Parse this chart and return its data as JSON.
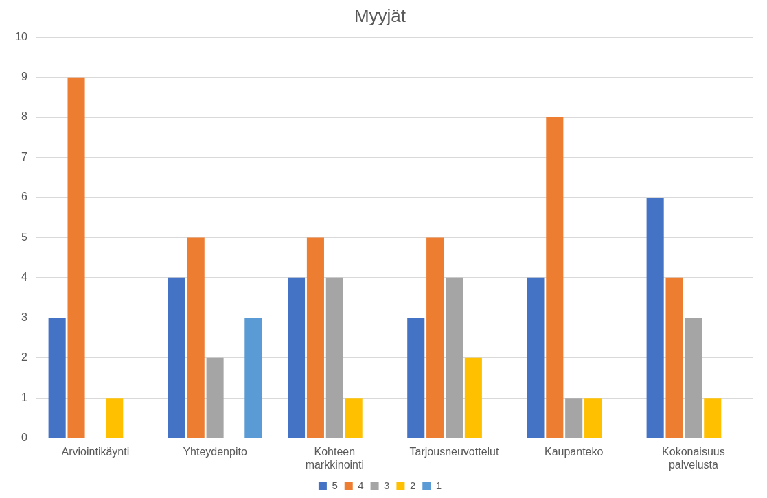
{
  "chart_data": {
    "type": "bar",
    "title": "Myyjät",
    "categories": [
      "Arviointikäynti",
      "Yhteydenpito",
      "Kohteen markkinointi",
      "Tarjousneuvottelut",
      "Kaupanteko",
      "Kokonaisuus palvelusta"
    ],
    "series": [
      {
        "name": "5",
        "color": "#4472c4",
        "values": [
          3,
          4,
          4,
          3,
          4,
          6
        ]
      },
      {
        "name": "4",
        "color": "#ed7d31",
        "values": [
          9,
          5,
          5,
          5,
          8,
          4
        ]
      },
      {
        "name": "3",
        "color": "#a5a5a5",
        "values": [
          0,
          2,
          4,
          4,
          1,
          3
        ]
      },
      {
        "name": "2",
        "color": "#ffc000",
        "values": [
          1,
          0,
          1,
          2,
          1,
          1
        ]
      },
      {
        "name": "1",
        "color": "#5b9bd5",
        "values": [
          0,
          3,
          0,
          0,
          0,
          0
        ]
      }
    ],
    "ylim": [
      0,
      10
    ],
    "yticks": [
      0,
      1,
      2,
      3,
      4,
      5,
      6,
      7,
      8,
      9,
      10
    ],
    "grid": "y",
    "legend": "bottom"
  }
}
